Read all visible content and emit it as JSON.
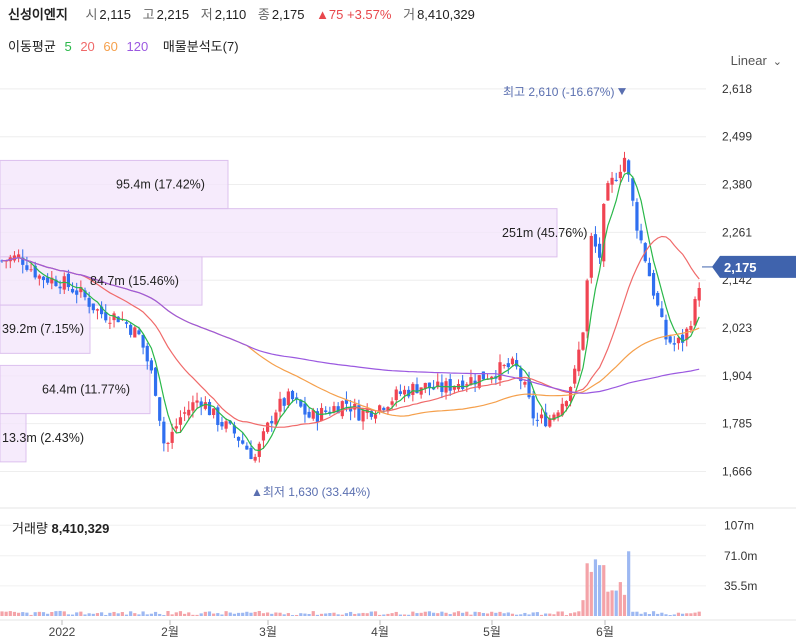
{
  "header": {
    "name": "신성이엔지",
    "open_label": "시",
    "open": "2,115",
    "high_label": "고",
    "high": "2,215",
    "low_label": "저",
    "low": "2,110",
    "close_label": "종",
    "close": "2,175",
    "change": "▲75 +3.57%",
    "volume_label": "거",
    "volume": "8,410,329"
  },
  "ma_legend": {
    "label": "이동평균",
    "periods": [
      "5",
      "20",
      "60",
      "120"
    ],
    "colors": [
      "#2ab84a",
      "#f06a6a",
      "#f5a04c",
      "#9b59e0"
    ],
    "volume_profile_label": "매물분석도(7)"
  },
  "scale_mode": "Linear",
  "chart_data": {
    "type": "candlestick",
    "price_axis_ticks": [
      2618,
      2499,
      2380,
      2261,
      2142,
      2023,
      1904,
      1785,
      1666
    ],
    "price_axis_tick_labels": [
      "2,618",
      "2,499",
      "2,380",
      "2,261",
      "2,142",
      "2,023",
      "1,904",
      "1,785",
      "1,666"
    ],
    "ylim": [
      1620,
      2660
    ],
    "current_price_label": "2,175",
    "current_price": 2175,
    "x_axis_labels": [
      "2022",
      "2월",
      "3월",
      "4월",
      "5월",
      "6월"
    ],
    "high_marker": {
      "text": "최고 2,610 (-16.67%)",
      "value": 2610
    },
    "low_marker": {
      "text": "▲최저 1,630 (33.44%)",
      "value": 1630
    },
    "volume_profile": [
      {
        "text": "95.4m (17.42%)",
        "price_top": 2440,
        "price_bottom": 2320
      },
      {
        "text": "251m (45.76%)",
        "price_top": 2320,
        "price_bottom": 2200
      },
      {
        "text": "84.7m (15.46%)",
        "price_top": 2200,
        "price_bottom": 2080
      },
      {
        "text": "39.2m (7.15%)",
        "price_top": 2080,
        "price_bottom": 1960
      },
      {
        "text": "64.4m (11.77%)",
        "price_top": 1930,
        "price_bottom": 1810
      },
      {
        "text": "13.3m (2.43%)",
        "price_top": 1810,
        "price_bottom": 1690
      }
    ],
    "volume_panel": {
      "title_label": "거래량",
      "title_value": "8,410,329",
      "tick_labels": [
        "107m",
        "71.0m",
        "35.5m"
      ],
      "ticks": [
        107,
        71,
        35.5
      ],
      "ylim": [
        0,
        125
      ]
    }
  }
}
